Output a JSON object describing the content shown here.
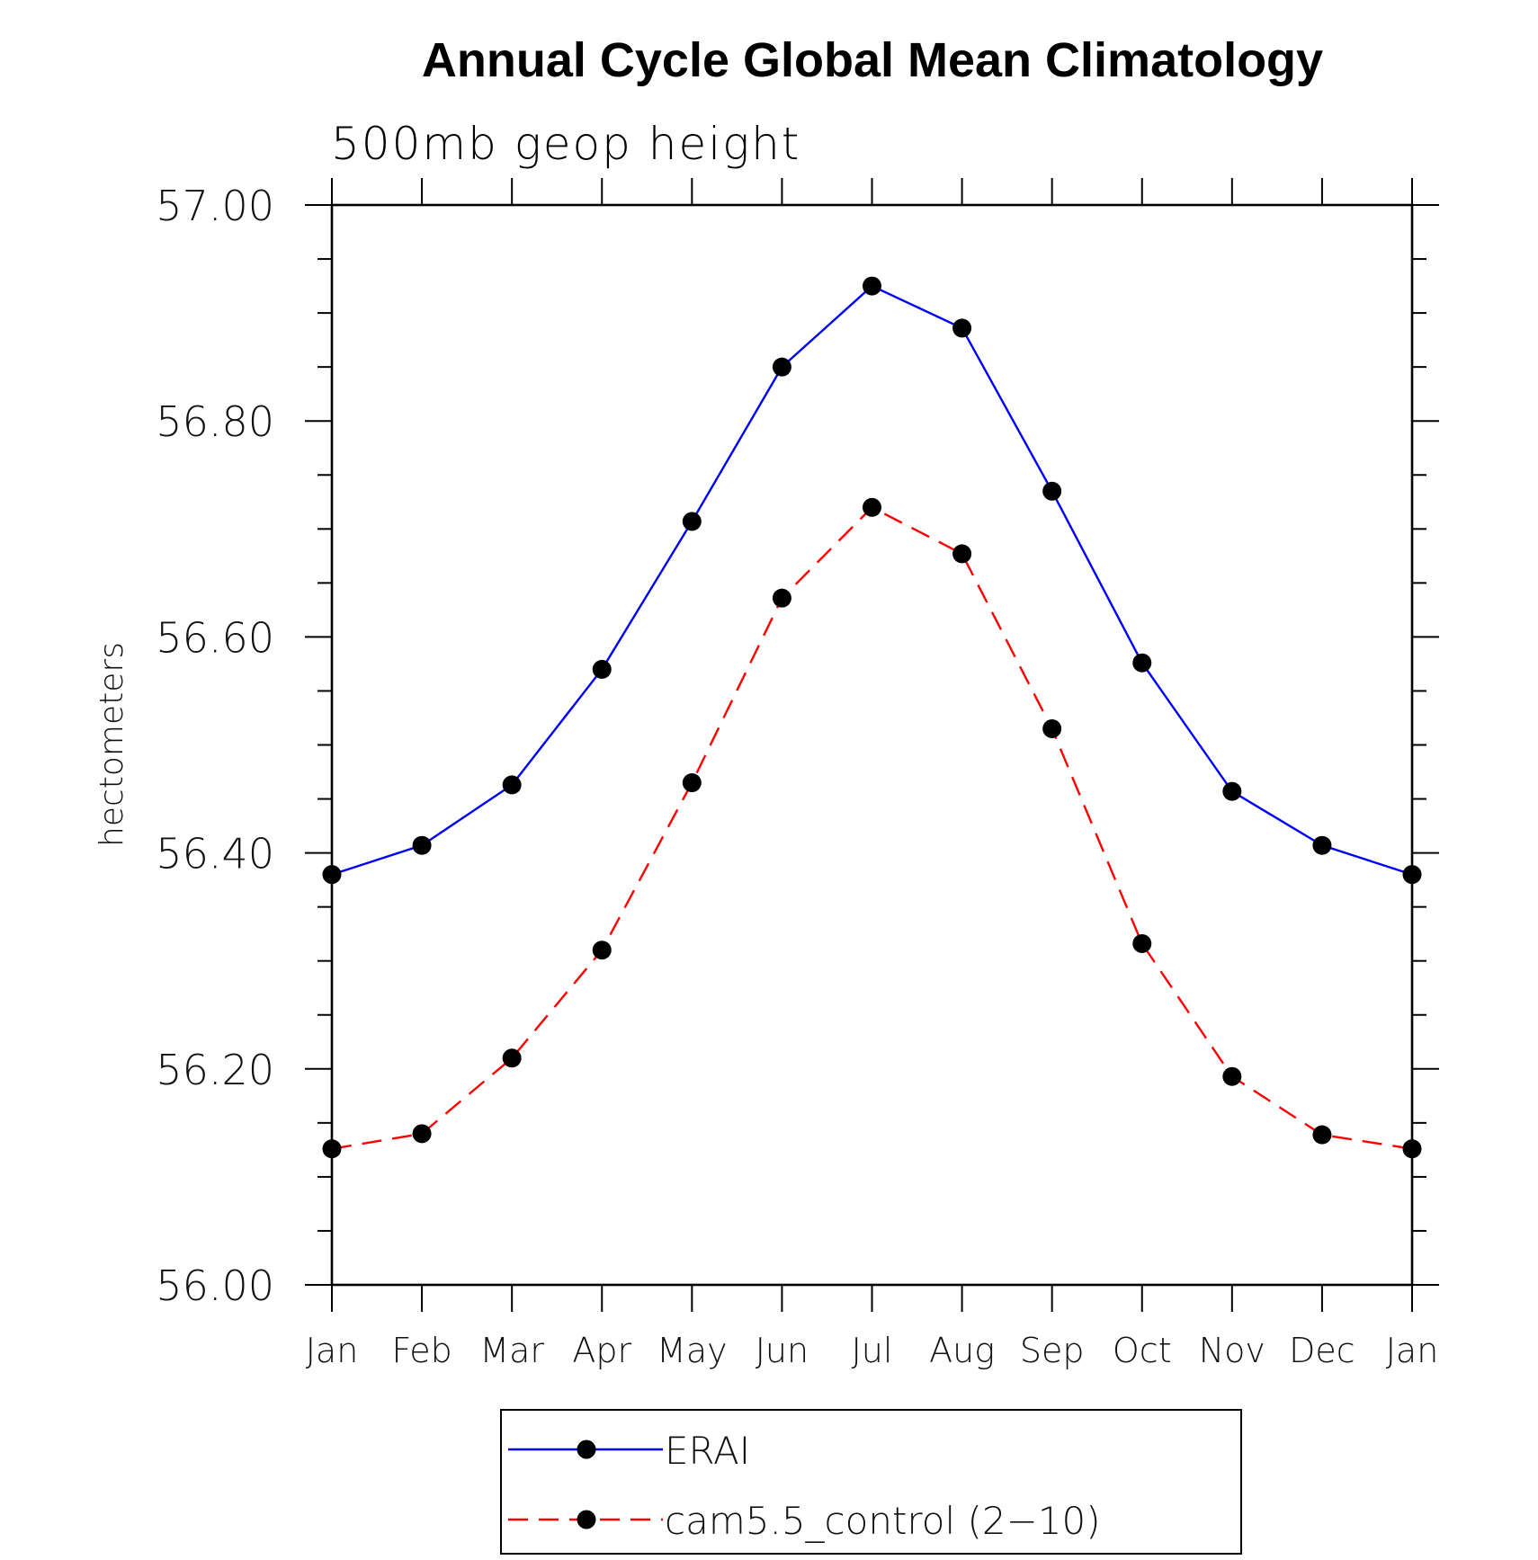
{
  "chart_data": {
    "type": "line",
    "title": "Annual Cycle Global Mean Climatology",
    "subtitle": "500mb geop height",
    "ylabel": "hectometers",
    "xlabel": "",
    "categories": [
      "Jan",
      "Feb",
      "Mar",
      "Apr",
      "May",
      "Jun",
      "Jul",
      "Aug",
      "Sep",
      "Oct",
      "Nov",
      "Dec",
      "Jan"
    ],
    "ylim": [
      56.0,
      57.0
    ],
    "yticks": [
      "56.00",
      "56.20",
      "56.40",
      "56.60",
      "56.80",
      "57.00"
    ],
    "series": [
      {
        "name": "ERAI",
        "color": "#0000ff",
        "dash": "solid",
        "values": [
          56.38,
          56.407,
          56.463,
          56.57,
          56.707,
          56.85,
          56.925,
          56.886,
          56.735,
          56.576,
          56.457,
          56.407,
          56.38
        ]
      },
      {
        "name": "cam5.5_control (2−10)",
        "color": "#ff0000",
        "dash": "dashed",
        "values": [
          56.126,
          56.14,
          56.21,
          56.31,
          56.465,
          56.636,
          56.72,
          56.677,
          56.515,
          56.316,
          56.193,
          56.139,
          56.126
        ]
      }
    ],
    "marker": "filled-circle",
    "marker_color": "#000000",
    "legend_position": "bottom-center",
    "grid": false
  }
}
